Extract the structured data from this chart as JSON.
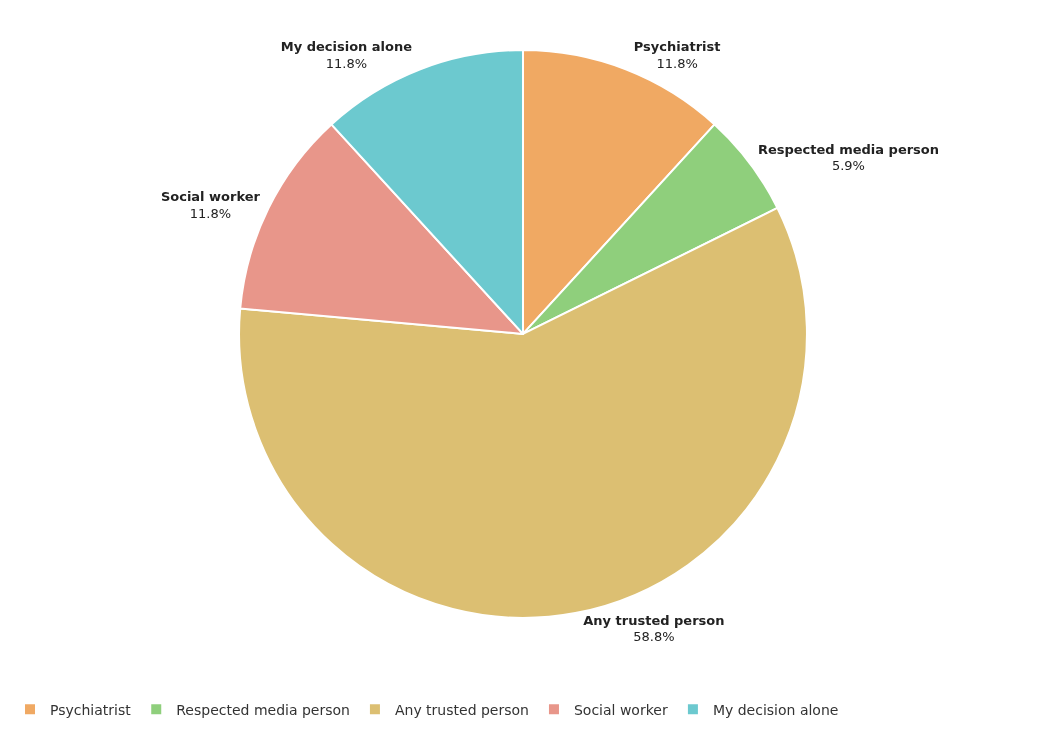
{
  "chart_data": {
    "type": "pie",
    "categories": [
      "Psychiatrist",
      "Respected media person",
      "Any trusted person",
      "Social worker",
      "My decision alone"
    ],
    "values": [
      11.8,
      5.9,
      58.8,
      11.8,
      11.8
    ],
    "value_labels": [
      "11.8%",
      "5.9%",
      "58.8%",
      "11.8%",
      "11.8%"
    ],
    "colors": [
      "#f0a963",
      "#8fcf7c",
      "#dcbf72",
      "#e8968a",
      "#6cc9cf"
    ],
    "legend": "bottom"
  }
}
